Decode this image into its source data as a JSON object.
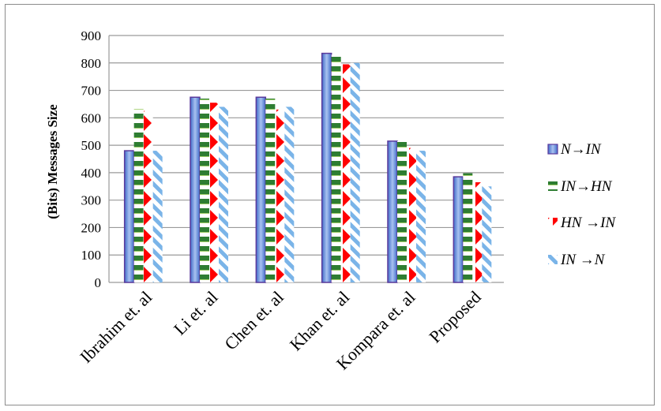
{
  "chart_data": {
    "type": "bar",
    "title": "",
    "xlabel": "",
    "ylabel": "(Bits) Messages Size",
    "ylim": [
      0,
      900
    ],
    "yticks": [
      "0",
      "100",
      "200",
      "300",
      "400",
      "500",
      "600",
      "700",
      "800",
      "900"
    ],
    "grid": true,
    "legend_position": "right",
    "categories": [
      "Ibrahim et. al",
      "Li et. al",
      "Chen et. al",
      "Khan et. al",
      "Kompara et. al",
      "Proposed"
    ],
    "series": [
      {
        "name": "N→IN",
        "color": "#6b8fd6",
        "pattern": "solid-blue",
        "values": [
          480,
          675,
          675,
          835,
          515,
          385
        ]
      },
      {
        "name": "IN→HN",
        "color": "#2e7d32",
        "pattern": "green-stripes",
        "values": [
          632,
          670,
          670,
          830,
          515,
          398
        ]
      },
      {
        "name": "HN →IN",
        "color": "#ff0000",
        "pattern": "red-arrows",
        "values": [
          625,
          655,
          630,
          795,
          490,
          365
        ]
      },
      {
        "name": "IN →N",
        "color": "#7ab4e8",
        "pattern": "blue-diagonal",
        "values": [
          480,
          640,
          640,
          800,
          480,
          350
        ]
      }
    ]
  }
}
